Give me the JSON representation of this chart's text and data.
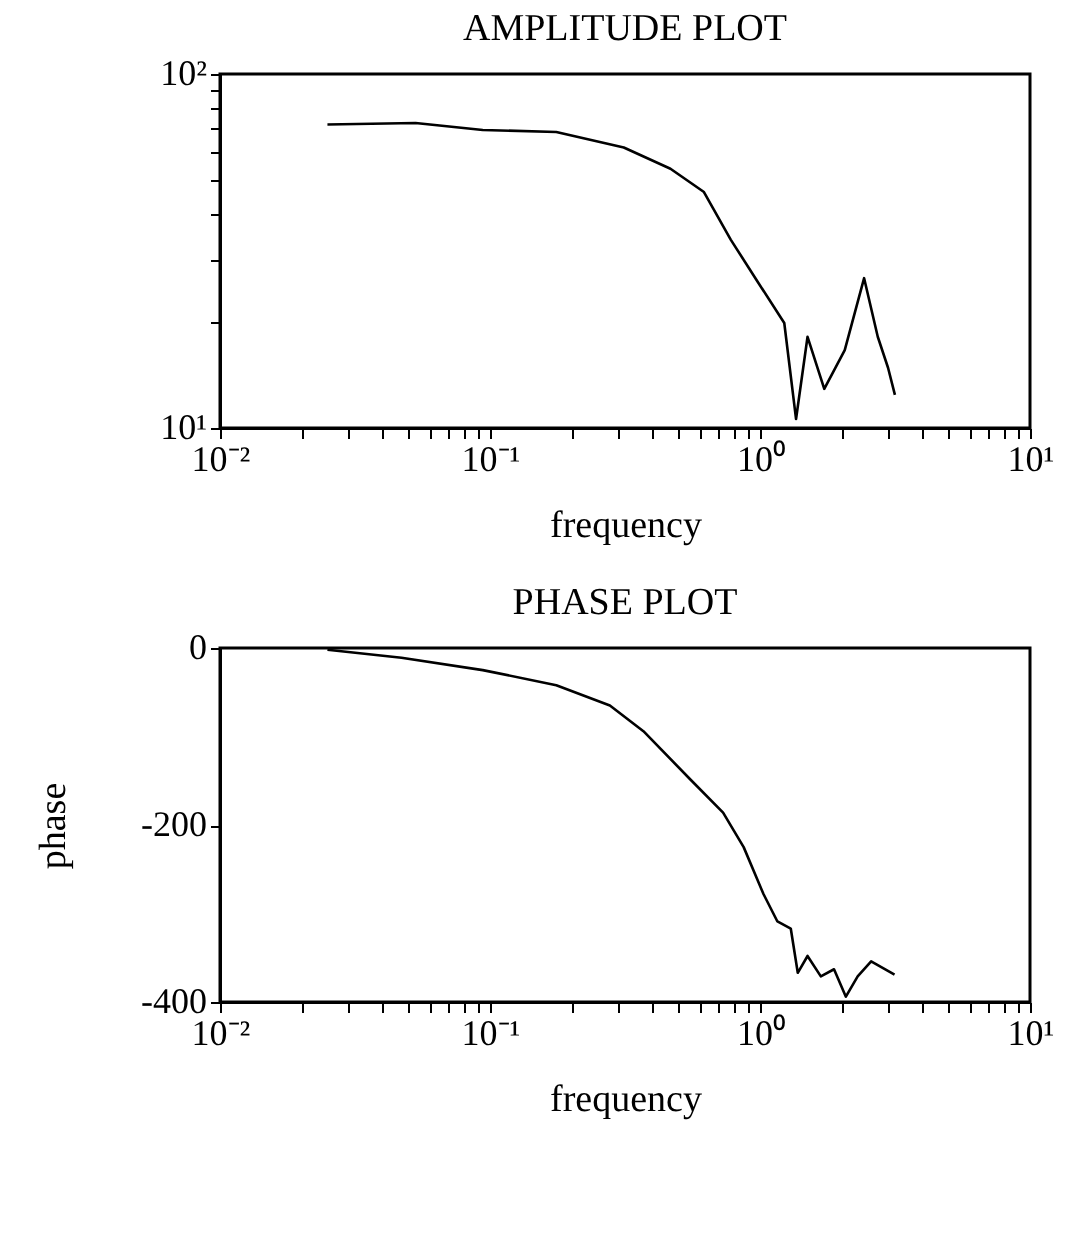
{
  "chart_data": [
    {
      "type": "line",
      "title": "AMPLITUDE PLOT",
      "xlabel": "frequency",
      "log": "xy",
      "grid": false,
      "marker": "none",
      "line_style": "solid",
      "x": [
        0.025,
        0.053,
        0.094,
        0.176,
        0.313,
        0.466,
        0.62,
        0.78,
        0.98,
        1.23,
        1.36,
        1.5,
        1.73,
        2.06,
        2.43,
        2.73,
        2.98,
        3.16
      ],
      "series": [
        {
          "color": "#000000",
          "values": [
            72,
            72.7,
            69.5,
            68.6,
            62,
            54,
            46.4,
            34,
            25.9,
            19.8,
            10.6,
            18.1,
            12.9,
            16.6,
            26.5,
            18.1,
            14.8,
            12.4
          ]
        }
      ],
      "xlim": [
        0.01,
        10
      ],
      "ylim": [
        10,
        100
      ],
      "xticks": [
        {
          "value": 0.01,
          "label": "10⁻²"
        },
        {
          "value": 0.02,
          "label": null
        },
        {
          "value": 0.03,
          "label": null
        },
        {
          "value": 0.04,
          "label": null
        },
        {
          "value": 0.05,
          "label": null
        },
        {
          "value": 0.06,
          "label": null
        },
        {
          "value": 0.07,
          "label": null
        },
        {
          "value": 0.08,
          "label": null
        },
        {
          "value": 0.09,
          "label": null
        },
        {
          "value": 0.1,
          "label": "10⁻¹"
        },
        {
          "value": 0.2,
          "label": null
        },
        {
          "value": 0.3,
          "label": null
        },
        {
          "value": 0.4,
          "label": null
        },
        {
          "value": 0.5,
          "label": null
        },
        {
          "value": 0.6,
          "label": null
        },
        {
          "value": 0.7,
          "label": null
        },
        {
          "value": 0.8,
          "label": null
        },
        {
          "value": 0.9,
          "label": null
        },
        {
          "value": 1,
          "label": "10⁰"
        },
        {
          "value": 2,
          "label": null
        },
        {
          "value": 3,
          "label": null
        },
        {
          "value": 4,
          "label": null
        },
        {
          "value": 5,
          "label": null
        },
        {
          "value": 6,
          "label": null
        },
        {
          "value": 7,
          "label": null
        },
        {
          "value": 8,
          "label": null
        },
        {
          "value": 9,
          "label": null
        },
        {
          "value": 10,
          "label": "10¹"
        }
      ],
      "yticks": [
        {
          "value": 10,
          "label": "10¹"
        },
        {
          "value": 20,
          "label": null
        },
        {
          "value": 30,
          "label": null
        },
        {
          "value": 40,
          "label": null
        },
        {
          "value": 50,
          "label": null
        },
        {
          "value": 60,
          "label": null
        },
        {
          "value": 70,
          "label": null
        },
        {
          "value": 80,
          "label": null
        },
        {
          "value": 90,
          "label": null
        },
        {
          "value": 100,
          "label": "10²"
        }
      ]
    },
    {
      "type": "line",
      "title": "PHASE PLOT",
      "xlabel": "frequency",
      "ylabel": "phase",
      "log": "x",
      "grid": false,
      "marker": "none",
      "line_style": "solid",
      "x": [
        0.025,
        0.047,
        0.094,
        0.176,
        0.278,
        0.37,
        0.55,
        0.73,
        0.87,
        1.03,
        1.16,
        1.3,
        1.38,
        1.5,
        1.68,
        1.88,
        2.08,
        2.3,
        2.58,
        3.15
      ],
      "series": [
        {
          "color": "#000000",
          "values": [
            -2,
            -11,
            -25,
            -42,
            -65,
            -94,
            -148,
            -186,
            -225,
            -278,
            -309,
            -317,
            -367,
            -348,
            -371,
            -363,
            -394,
            -371,
            -354,
            -369
          ]
        }
      ],
      "xlim": [
        0.01,
        10
      ],
      "ylim": [
        -400,
        0
      ],
      "xticks": [
        {
          "value": 0.01,
          "label": "10⁻²"
        },
        {
          "value": 0.02,
          "label": null
        },
        {
          "value": 0.03,
          "label": null
        },
        {
          "value": 0.04,
          "label": null
        },
        {
          "value": 0.05,
          "label": null
        },
        {
          "value": 0.06,
          "label": null
        },
        {
          "value": 0.07,
          "label": null
        },
        {
          "value": 0.08,
          "label": null
        },
        {
          "value": 0.09,
          "label": null
        },
        {
          "value": 0.1,
          "label": "10⁻¹"
        },
        {
          "value": 0.2,
          "label": null
        },
        {
          "value": 0.3,
          "label": null
        },
        {
          "value": 0.4,
          "label": null
        },
        {
          "value": 0.5,
          "label": null
        },
        {
          "value": 0.6,
          "label": null
        },
        {
          "value": 0.7,
          "label": null
        },
        {
          "value": 0.8,
          "label": null
        },
        {
          "value": 0.9,
          "label": null
        },
        {
          "value": 1,
          "label": "10⁰"
        },
        {
          "value": 2,
          "label": null
        },
        {
          "value": 3,
          "label": null
        },
        {
          "value": 4,
          "label": null
        },
        {
          "value": 5,
          "label": null
        },
        {
          "value": 6,
          "label": null
        },
        {
          "value": 7,
          "label": null
        },
        {
          "value": 8,
          "label": null
        },
        {
          "value": 9,
          "label": null
        },
        {
          "value": 10,
          "label": "10¹"
        }
      ],
      "yticks": [
        -400,
        -200,
        0
      ]
    }
  ]
}
